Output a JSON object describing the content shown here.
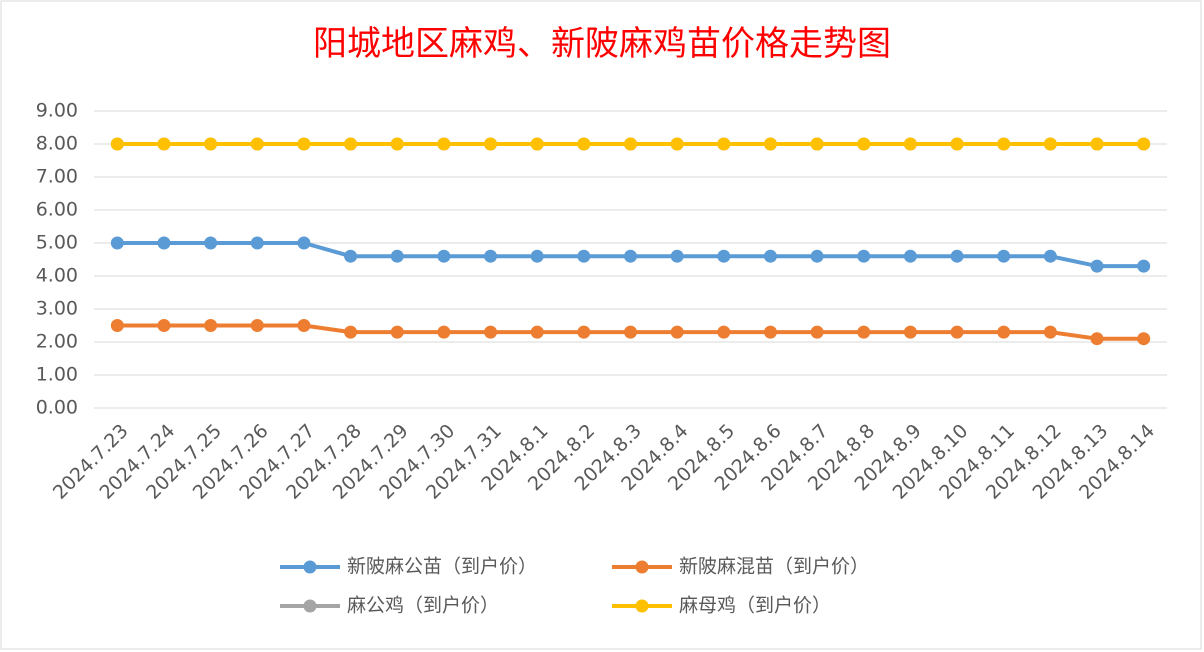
{
  "chart_data": {
    "type": "line",
    "title": "阳城地区麻鸡、新陂麻鸡苗价格走势图",
    "categories": [
      "2024.7.23",
      "2024.7.24",
      "2024.7.25",
      "2024.7.26",
      "2024.7.27",
      "2024.7.28",
      "2024.7.29",
      "2024.7.30",
      "2024.7.31",
      "2024.8.1",
      "2024.8.2",
      "2024.8.3",
      "2024.8.4",
      "2024.8.5",
      "2024.8.6",
      "2024.8.7",
      "2024.8.8",
      "2024.8.9",
      "2024.8.10",
      "2024.8.11",
      "2024.8.12",
      "2024.8.13",
      "2024.8.14"
    ],
    "series": [
      {
        "name": "新陂麻公苗（到户价）",
        "color": "#5b9bd5",
        "values": [
          5,
          5,
          5,
          5,
          5,
          4.6,
          4.6,
          4.6,
          4.6,
          4.6,
          4.6,
          4.6,
          4.6,
          4.6,
          4.6,
          4.6,
          4.6,
          4.6,
          4.6,
          4.6,
          4.6,
          4.3,
          4.3
        ]
      },
      {
        "name": "新陂麻混苗（到户价）",
        "color": "#ed7d31",
        "values": [
          2.5,
          2.5,
          2.5,
          2.5,
          2.5,
          2.3,
          2.3,
          2.3,
          2.3,
          2.3,
          2.3,
          2.3,
          2.3,
          2.3,
          2.3,
          2.3,
          2.3,
          2.3,
          2.3,
          2.3,
          2.3,
          2.1,
          2.1
        ]
      },
      {
        "name": "麻公鸡（到户价）",
        "color": "#a5a5a5",
        "values": [
          8,
          8,
          8,
          8,
          8,
          8,
          8,
          8,
          8,
          8,
          8,
          8,
          8,
          8,
          8,
          8,
          8,
          8,
          8,
          8,
          8,
          8,
          8
        ]
      },
      {
        "name": "麻母鸡（到户价）",
        "color": "#ffc000",
        "values": [
          8,
          8,
          8,
          8,
          8,
          8,
          8,
          8,
          8,
          8,
          8,
          8,
          8,
          8,
          8,
          8,
          8,
          8,
          8,
          8,
          8,
          8,
          8
        ]
      }
    ],
    "ylim": [
      0,
      9
    ],
    "yticks": [
      {
        "value": 0,
        "label": "0.00"
      },
      {
        "value": 1,
        "label": "1.00"
      },
      {
        "value": 2,
        "label": "2.00"
      },
      {
        "value": 3,
        "label": "3.00"
      },
      {
        "value": 4,
        "label": "4.00"
      },
      {
        "value": 5,
        "label": "5.00"
      },
      {
        "value": 6,
        "label": "6.00"
      },
      {
        "value": 7,
        "label": "7.00"
      },
      {
        "value": 8,
        "label": "8.00"
      },
      {
        "value": 9,
        "label": "9.00"
      }
    ],
    "grid": true,
    "legend": "bottom"
  }
}
